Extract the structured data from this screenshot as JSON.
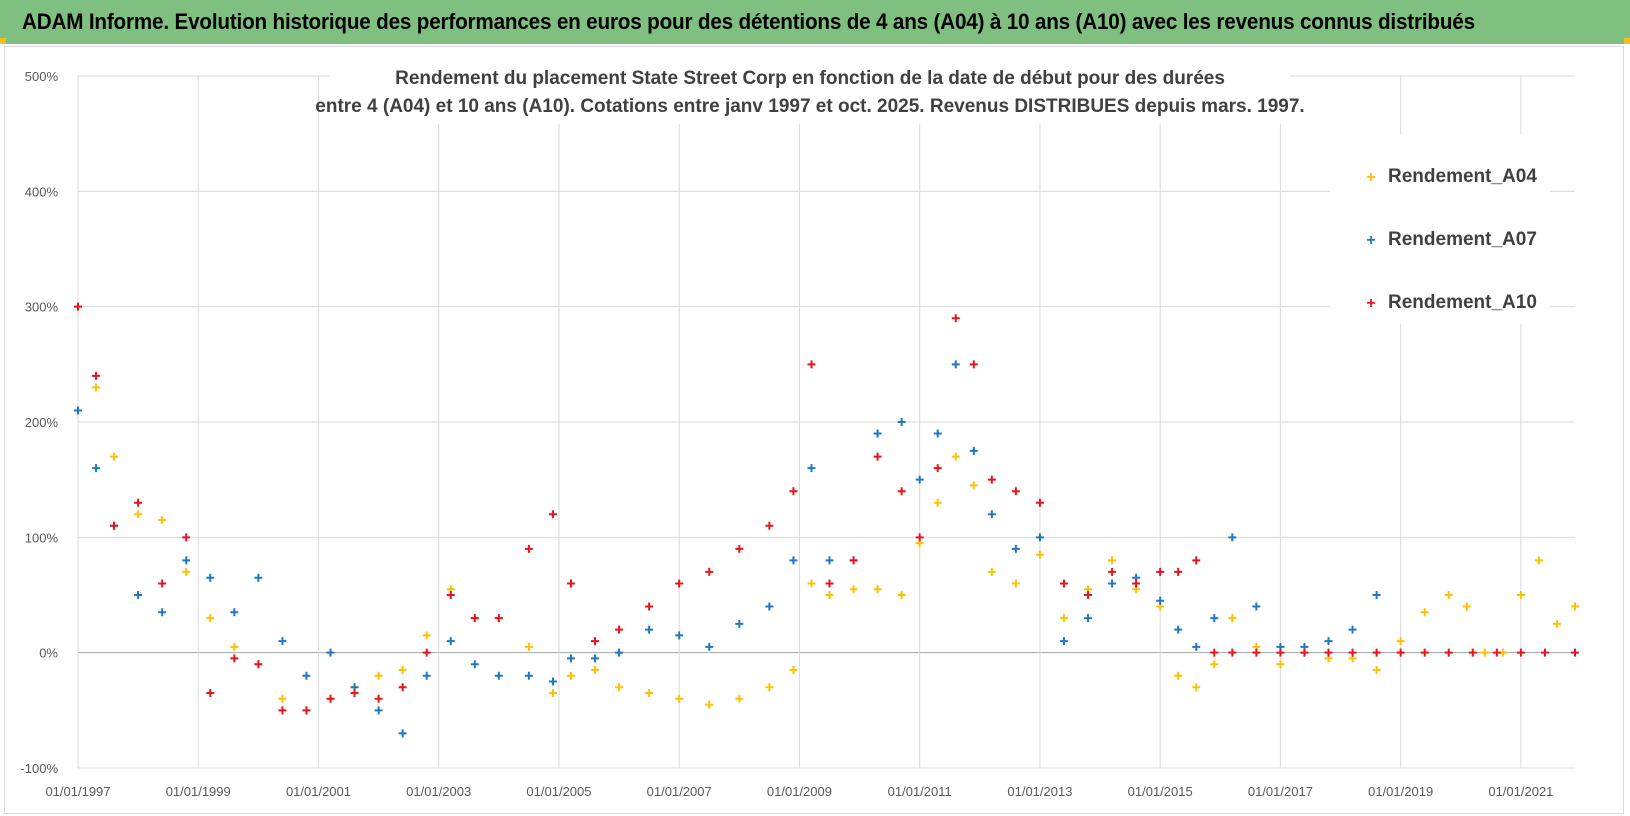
{
  "banner": {
    "title": "ADAM Informe. Evolution historique des performances en euros pour des détentions de 4 ans (A04) à 10 ans (A10) avec les revenus connus distribués"
  },
  "colors": {
    "banner_bg": "#7fbf7f",
    "a04": "#ffc000",
    "a07": "#1f78c1",
    "a10": "#e8141c",
    "grid": "#d9d9d9",
    "axis_text": "#595959"
  },
  "chart_data": {
    "type": "scatter",
    "title_lines": [
      "Rendement du placement State Street Corp en fonction de la date de début pour des durées",
      "entre 4 (A04) et 10 ans (A10).  Cotations entre janv 1997 et oct. 2025.  Revenus DISTRIBUES depuis mars. 1997."
    ],
    "xlabel": "",
    "ylabel": "",
    "x_range": [
      1997.0,
      2021.9
    ],
    "ylim": [
      -100,
      500
    ],
    "y_ticks": [
      -100,
      0,
      100,
      200,
      300,
      400,
      500
    ],
    "y_tick_labels": [
      "-100%",
      "0%",
      "100%",
      "200%",
      "300%",
      "400%",
      "500%"
    ],
    "x_tick_years": [
      1997,
      1999,
      2001,
      2003,
      2005,
      2007,
      2009,
      2011,
      2013,
      2015,
      2017,
      2019,
      2021
    ],
    "x_tick_labels": [
      "01/01/1997",
      "01/01/1999",
      "01/01/2001",
      "01/01/2003",
      "01/01/2005",
      "01/01/2007",
      "01/01/2009",
      "01/01/2011",
      "01/01/2013",
      "01/01/2015",
      "01/01/2017",
      "01/01/2019",
      "01/01/2021"
    ],
    "grid": true,
    "legend_position": "top-right",
    "series": [
      {
        "name": "Rendement_A04",
        "color": "#ffc000",
        "x": [
          1997.0,
          1997.3,
          1997.6,
          1998.0,
          1998.4,
          1998.8,
          1999.2,
          1999.6,
          2000.0,
          2000.4,
          2000.8,
          2001.2,
          2001.6,
          2002.0,
          2002.4,
          2002.8,
          2003.2,
          2003.6,
          2004.0,
          2004.5,
          2004.9,
          2005.2,
          2005.6,
          2006.0,
          2006.5,
          2007.0,
          2007.5,
          2008.0,
          2008.5,
          2008.9,
          2009.2,
          2009.5,
          2009.9,
          2010.3,
          2010.7,
          2011.0,
          2011.3,
          2011.6,
          2011.9,
          2012.2,
          2012.6,
          2013.0,
          2013.4,
          2013.8,
          2014.2,
          2014.6,
          2015.0,
          2015.3,
          2015.6,
          2015.9,
          2016.2,
          2016.6,
          2017.0,
          2017.4,
          2017.8,
          2018.2,
          2018.6,
          2019.0,
          2019.4,
          2019.8,
          2020.1,
          2020.4,
          2020.7,
          2021.0,
          2021.3,
          2021.6,
          2021.9
        ],
        "y": [
          300,
          230,
          170,
          120,
          115,
          70,
          30,
          5,
          -10,
          -40,
          -50,
          -40,
          -30,
          -20,
          -15,
          15,
          55,
          30,
          30,
          5,
          -35,
          -20,
          -15,
          -30,
          -35,
          -40,
          -45,
          -40,
          -30,
          -15,
          60,
          50,
          55,
          55,
          50,
          95,
          130,
          170,
          145,
          70,
          60,
          85,
          30,
          55,
          80,
          55,
          40,
          -20,
          -30,
          -10,
          30,
          5,
          -10,
          0,
          -5,
          -5,
          -15,
          10,
          35,
          50,
          40,
          0,
          0,
          50,
          80,
          25,
          40
        ]
      },
      {
        "name": "Rendement_A07",
        "color": "#1f78c1",
        "x": [
          1997.0,
          1997.3,
          1997.6,
          1998.0,
          1998.4,
          1998.8,
          1999.2,
          1999.6,
          2000.0,
          2000.4,
          2000.8,
          2001.2,
          2001.6,
          2002.0,
          2002.4,
          2002.8,
          2003.2,
          2003.6,
          2004.0,
          2004.5,
          2004.9,
          2005.2,
          2005.6,
          2006.0,
          2006.5,
          2007.0,
          2007.5,
          2008.0,
          2008.5,
          2008.9,
          2009.2,
          2009.5,
          2009.9,
          2010.3,
          2010.7,
          2011.0,
          2011.3,
          2011.6,
          2011.9,
          2012.2,
          2012.6,
          2013.0,
          2013.4,
          2013.8,
          2014.2,
          2014.6,
          2015.0,
          2015.3,
          2015.6,
          2015.9,
          2016.2,
          2016.6,
          2017.0,
          2017.4,
          2017.8,
          2018.2,
          2018.6
        ],
        "y": [
          210,
          160,
          110,
          50,
          35,
          80,
          65,
          35,
          65,
          10,
          -20,
          0,
          -30,
          -50,
          -70,
          -20,
          10,
          -10,
          -20,
          -20,
          -25,
          -5,
          -5,
          0,
          20,
          15,
          5,
          25,
          40,
          80,
          160,
          80,
          80,
          190,
          200,
          150,
          190,
          250,
          175,
          120,
          90,
          100,
          10,
          30,
          60,
          65,
          45,
          20,
          5,
          30,
          100,
          40,
          5,
          5,
          10,
          20,
          50
        ]
      },
      {
        "name": "Rendement_A10",
        "color": "#e8141c",
        "x": [
          1997.0,
          1997.3,
          1997.6,
          1998.0,
          1998.4,
          1998.8,
          1999.2,
          1999.6,
          2000.0,
          2000.4,
          2000.8,
          2001.2,
          2001.6,
          2002.0,
          2002.4,
          2002.8,
          2003.2,
          2003.6,
          2004.0,
          2004.5,
          2004.9,
          2005.2,
          2005.6,
          2006.0,
          2006.5,
          2007.0,
          2007.5,
          2008.0,
          2008.5,
          2008.9,
          2009.2,
          2009.5,
          2009.9,
          2010.3,
          2010.7,
          2011.0,
          2011.3,
          2011.6,
          2011.9,
          2012.2,
          2012.6,
          2013.0,
          2013.4,
          2013.8,
          2014.2,
          2014.6,
          2015.0,
          2015.3,
          2015.6,
          2015.9,
          2016.2,
          2016.6,
          2017.0,
          2017.4,
          2017.8,
          2018.2,
          2018.6,
          2019.0,
          2019.4,
          2019.8,
          2020.2,
          2020.6,
          2021.0,
          2021.4,
          2021.9
        ],
        "y": [
          300,
          240,
          110,
          130,
          60,
          100,
          -35,
          -5,
          -10,
          -50,
          -50,
          -40,
          -35,
          -40,
          -30,
          0,
          50,
          30,
          30,
          90,
          120,
          60,
          10,
          20,
          40,
          60,
          70,
          90,
          110,
          140,
          250,
          60,
          80,
          170,
          140,
          100,
          160,
          290,
          250,
          150,
          140,
          130,
          60,
          50,
          70,
          60,
          70,
          70,
          80,
          0,
          0,
          0,
          0,
          0,
          0,
          0,
          0,
          0,
          0,
          0,
          0,
          0,
          0,
          0,
          0
        ]
      }
    ]
  }
}
